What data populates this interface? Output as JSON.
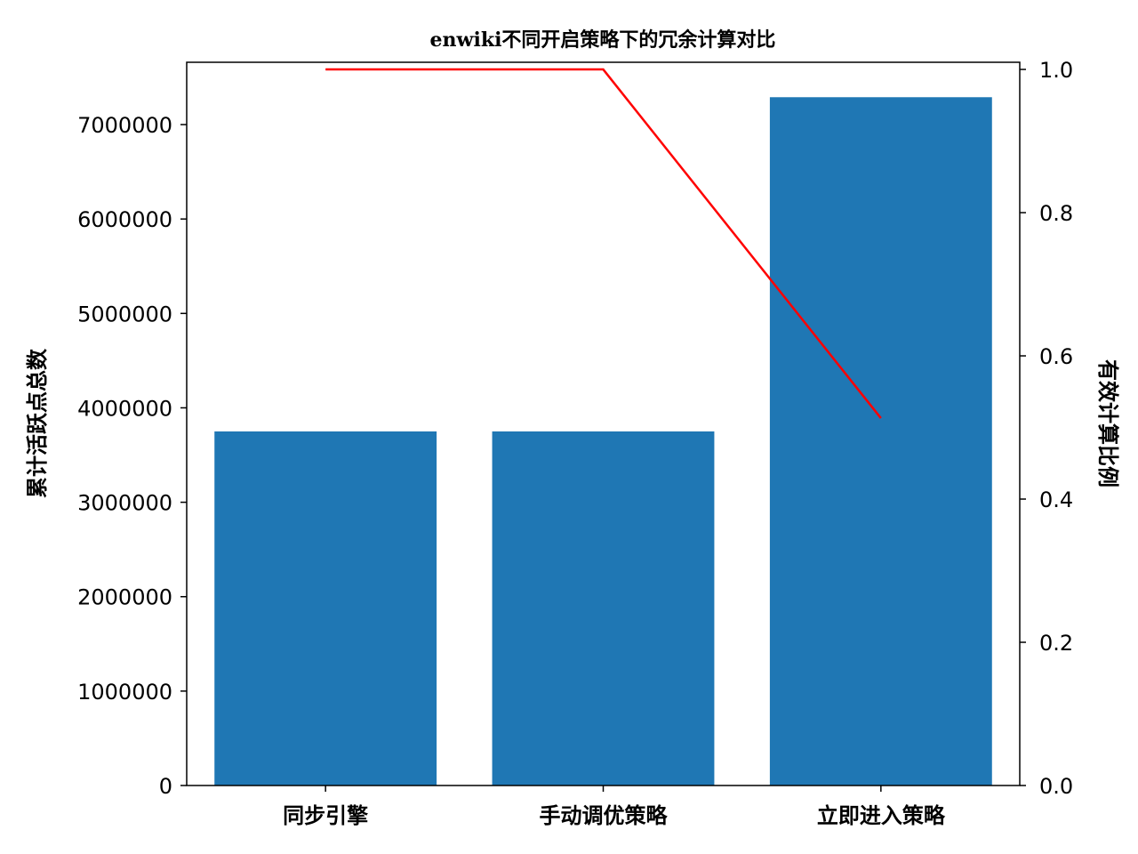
{
  "chart_data": {
    "type": "bar",
    "title": "enwiki不同开启策略下的冗余计算对比",
    "categories": [
      "同步引擎",
      "手动调优策略",
      "立即进入策略"
    ],
    "ylabel": "累计活跃点总数",
    "y2label": "有效计算比例",
    "ylim": [
      0,
      7660000
    ],
    "y2lim": [
      0,
      1.01
    ],
    "yticks": [
      0,
      1000000,
      2000000,
      3000000,
      4000000,
      5000000,
      6000000,
      7000000
    ],
    "y2ticks": [
      "0.0",
      "0.2",
      "0.4",
      "0.6",
      "0.8",
      "1.0"
    ],
    "grid": false,
    "series": [
      {
        "values": [
          3750000,
          3750000,
          7290000
        ],
        "color": "#1f77b4",
        "axis": "left",
        "kind": "bar"
      },
      {
        "values": [
          1.0,
          1.0,
          0.513
        ],
        "color": "#ff0000",
        "axis": "right",
        "kind": "line"
      }
    ]
  }
}
